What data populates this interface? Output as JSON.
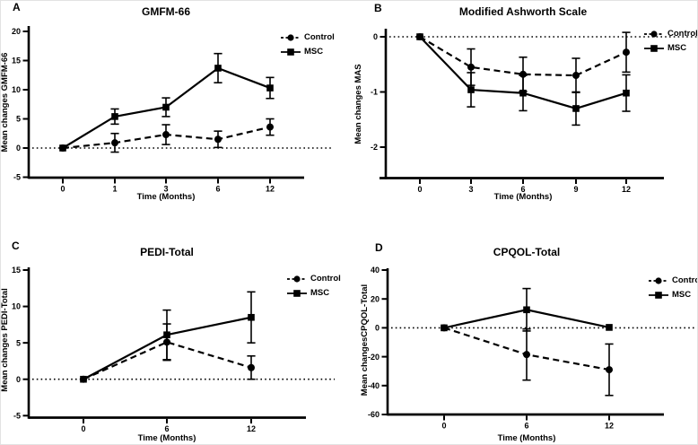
{
  "figure": {
    "background": "#ffffff",
    "ink_color": "#000000"
  },
  "chart_data": [
    {
      "type": "line",
      "panel_label": "A",
      "title": "GMFM-66",
      "xlabel": "Time (Months)",
      "ylabel": "Mean changes GMFM-66",
      "categories": [
        "0",
        "1",
        "3",
        "6",
        "12"
      ],
      "ylim": [
        -5,
        20
      ],
      "yticks": [
        20,
        15,
        10,
        5,
        0,
        -5
      ],
      "zero_line_dotted": true,
      "legend_position": "top-right",
      "series": [
        {
          "name": "Control",
          "marker": "circle",
          "line": "dashed",
          "values": [
            0,
            0.9,
            2.3,
            1.5,
            3.6
          ],
          "errors": [
            0,
            1.6,
            1.7,
            1.4,
            1.4
          ]
        },
        {
          "name": "MSC",
          "marker": "square",
          "line": "solid",
          "values": [
            0,
            5.4,
            7.0,
            13.7,
            10.3
          ],
          "errors": [
            0,
            1.3,
            1.6,
            2.5,
            1.8
          ]
        }
      ]
    },
    {
      "type": "line",
      "panel_label": "B",
      "title": "Modified Ashworth Scale",
      "xlabel": "Time (Months)",
      "ylabel": "Mean changes MAS",
      "categories": [
        "0",
        "3",
        "6",
        "9",
        "12"
      ],
      "ylim": [
        -2.5,
        0.15
      ],
      "yticks": [
        0,
        -1,
        -2
      ],
      "zero_line_dotted": true,
      "legend_position": "top-right",
      "series": [
        {
          "name": "Control",
          "marker": "circle",
          "line": "dashed",
          "values": [
            0,
            -0.55,
            -0.68,
            -0.7,
            -0.28
          ],
          "errors": [
            0,
            0.33,
            0.31,
            0.31,
            0.36
          ]
        },
        {
          "name": "MSC",
          "marker": "square",
          "line": "solid",
          "values": [
            0,
            -0.96,
            -1.02,
            -1.3,
            -1.02
          ],
          "errors": [
            0,
            0.31,
            0.32,
            0.3,
            0.33
          ]
        }
      ]
    },
    {
      "type": "line",
      "panel_label": "C",
      "title": "PEDI-Total",
      "xlabel": "Time (Months)",
      "ylabel": "Mean changes PEDI-Total",
      "categories": [
        "0",
        "6",
        "12"
      ],
      "ylim": [
        -5,
        15
      ],
      "yticks": [
        15,
        10,
        5,
        0,
        -5
      ],
      "zero_line_dotted": true,
      "legend_position": "top-right",
      "series": [
        {
          "name": "Control",
          "marker": "circle",
          "line": "dashed",
          "values": [
            0,
            5.1,
            1.6
          ],
          "errors": [
            0,
            2.5,
            1.6
          ]
        },
        {
          "name": "MSC",
          "marker": "square",
          "line": "solid",
          "values": [
            0,
            6.1,
            8.5
          ],
          "errors": [
            0,
            3.4,
            3.5
          ]
        }
      ]
    },
    {
      "type": "line",
      "panel_label": "D",
      "title": "CPQOL-Total",
      "xlabel": "Time (Months)",
      "ylabel": "Mean changesCPQOL-Total",
      "categories": [
        "0",
        "6",
        "12"
      ],
      "ylim": [
        -60,
        40
      ],
      "yticks": [
        40,
        20,
        0,
        -20,
        -40,
        -60
      ],
      "zero_line_dotted": true,
      "legend_position": "top-right",
      "series": [
        {
          "name": "Control",
          "marker": "circle",
          "line": "dashed",
          "values": [
            0,
            -18.5,
            -29
          ],
          "errors": [
            0,
            17.7,
            17.8
          ]
        },
        {
          "name": "MSC",
          "marker": "square",
          "line": "solid",
          "values": [
            0,
            12.5,
            0.3
          ],
          "errors": [
            0,
            14.7,
            0
          ]
        }
      ]
    }
  ]
}
